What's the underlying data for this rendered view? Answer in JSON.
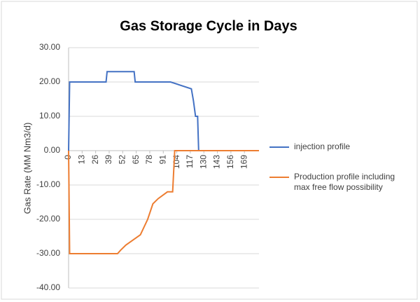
{
  "chart_data": {
    "type": "line",
    "title": "Gas Storage Cycle in Days",
    "y_label": "Gas Rate (MM Nm3/d)",
    "xlim": [
      0,
      183
    ],
    "xticks": [
      0,
      13,
      26,
      39,
      52,
      65,
      78,
      91,
      104,
      117,
      130,
      143,
      156,
      169
    ],
    "ylim": [
      -40,
      30
    ],
    "yticks": [
      {
        "value": 30,
        "label": "30.00"
      },
      {
        "value": 20,
        "label": "20.00"
      },
      {
        "value": 10,
        "label": "10.00"
      },
      {
        "value": 0,
        "label": "0.00"
      },
      {
        "value": -10,
        "label": "-10.00"
      },
      {
        "value": -20,
        "label": "-20.00"
      },
      {
        "value": -30,
        "label": "-30.00"
      },
      {
        "value": -40,
        "label": "-40.00"
      }
    ],
    "grid": true,
    "legend": "right",
    "series": [
      {
        "name": "injection profile",
        "color": "#4472c4",
        "x": [
          0,
          1,
          36,
          37,
          63,
          64,
          98,
          118,
          120,
          122,
          124,
          125
        ],
        "values": [
          0,
          20,
          20,
          23,
          23,
          20,
          20,
          18,
          14.5,
          10,
          10,
          0
        ]
      },
      {
        "name": "Production profile including max free flow possibility",
        "color": "#ed7d31",
        "x": [
          0,
          1,
          47,
          50,
          55,
          62,
          69,
          76,
          81,
          86,
          90.5,
          95,
          100,
          102,
          183
        ],
        "values": [
          0,
          -30,
          -30,
          -29,
          -27.5,
          -26,
          -24.5,
          -20,
          -15.5,
          -14,
          -13,
          -12,
          -12,
          0,
          0
        ]
      }
    ]
  }
}
